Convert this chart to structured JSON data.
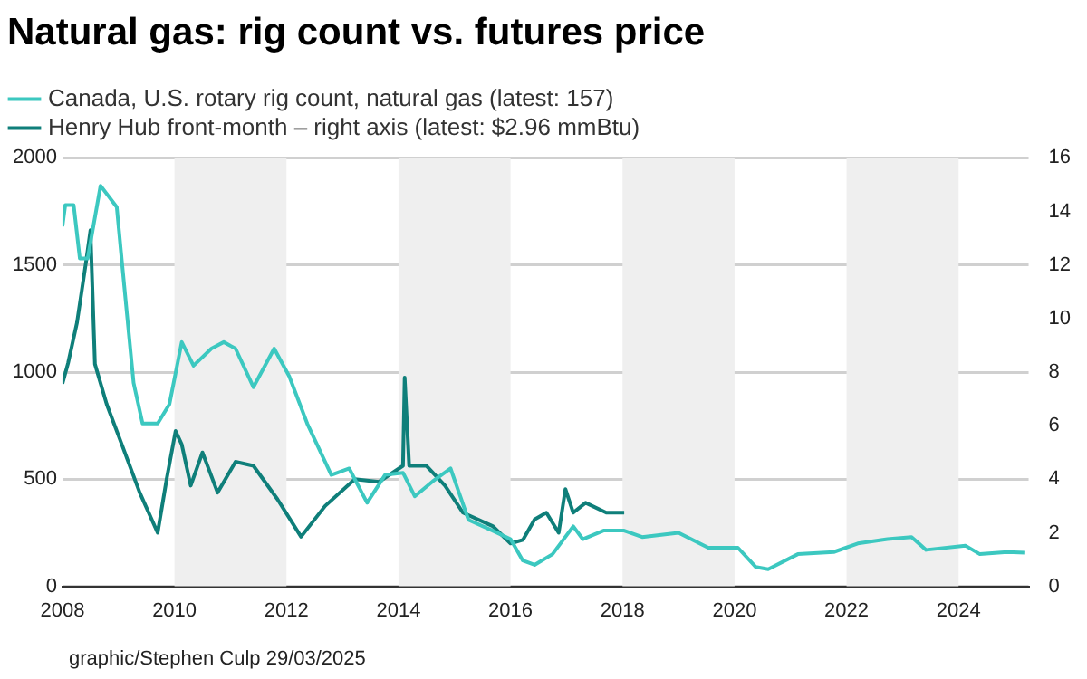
{
  "chart_data": {
    "type": "line",
    "title": "Natural gas: rig count vs. futures price",
    "xlim": [
      2008,
      2025.25
    ],
    "xticks": [
      2008,
      2010,
      2012,
      2014,
      2016,
      2018,
      2020,
      2022,
      2024
    ],
    "ylim": [
      0,
      2000
    ],
    "yticks": [
      0,
      500,
      1000,
      1500,
      2000
    ],
    "y2lim": [
      0,
      16
    ],
    "y2ticks": [
      0,
      2,
      4,
      6,
      8,
      10,
      12,
      14,
      16
    ],
    "grid": "y",
    "legend": "top left",
    "marker": "none",
    "line_style": "solid",
    "bands": [
      {
        "axis": "x",
        "from": 2010,
        "to": 2012,
        "color": "#efefef"
      },
      {
        "axis": "x",
        "from": 2014,
        "to": 2016,
        "color": "#efefef"
      },
      {
        "axis": "x",
        "from": 2018,
        "to": 2020,
        "color": "#efefef"
      },
      {
        "axis": "x",
        "from": 2022,
        "to": 2024,
        "color": "#efefef"
      }
    ],
    "series": [
      {
        "name": "Canada, U.S. rotary rig count, natural gas (latest: 157)",
        "color": "#3cc8c0",
        "x": [
          2008.0,
          2008.05,
          2008.2,
          2008.31,
          2008.45,
          2008.68,
          2008.97,
          2009.06,
          2009.27,
          2009.43,
          2009.7,
          2009.91,
          2010.13,
          2010.34,
          2010.66,
          2010.88,
          2011.09,
          2011.41,
          2011.78,
          2012.05,
          2012.37,
          2012.8,
          2013.12,
          2013.44,
          2013.76,
          2014.08,
          2014.29,
          2014.61,
          2014.93,
          2015.25,
          2015.68,
          2016.0,
          2016.22,
          2016.43,
          2016.75,
          2017.12,
          2017.29,
          2017.66,
          2018.03,
          2018.35,
          2019.0,
          2019.53,
          2020.06,
          2020.38,
          2020.6,
          2021.13,
          2021.77,
          2022.2,
          2022.73,
          2023.16,
          2023.42,
          2024.12,
          2024.38,
          2024.87,
          2025.19
        ],
        "values": [
          1680,
          1780,
          1780,
          1530,
          1530,
          1870,
          1770,
          1520,
          950,
          760,
          760,
          850,
          1140,
          1030,
          1110,
          1140,
          1110,
          930,
          1110,
          980,
          760,
          520,
          550,
          390,
          520,
          530,
          420,
          490,
          550,
          310,
          260,
          220,
          120,
          100,
          150,
          280,
          220,
          260,
          260,
          230,
          250,
          180,
          180,
          90,
          80,
          150,
          160,
          200,
          220,
          230,
          170,
          190,
          150,
          160,
          157
        ]
      },
      {
        "name": "Henry Hub front-month – right axis (latest: $2.96 mmBtu)",
        "color": "#0f7f7a",
        "axis": "y2",
        "x": [
          2008.0,
          2008.1,
          2008.26,
          2008.42,
          2008.5,
          2008.58,
          2008.79,
          2009.06,
          2009.38,
          2009.7,
          2009.86,
          2010.02,
          2010.13,
          2010.29,
          2010.5,
          2010.77,
          2011.09,
          2011.41,
          2011.84,
          2012.26,
          2012.69,
          2013.22,
          2013.65,
          2014.08,
          2014.11,
          2014.19,
          2014.5,
          2014.83,
          2015.15,
          2015.68,
          2016.0,
          2016.22,
          2016.43,
          2016.64,
          2016.86,
          2016.98,
          2017.12,
          2017.34,
          2017.71,
          2018.03
        ],
        "values": [
          7.57,
          8.33,
          9.85,
          12.1,
          13.3,
          8.3,
          6.8,
          5.3,
          3.5,
          2.0,
          4.0,
          5.8,
          5.3,
          3.76,
          5.0,
          3.5,
          4.65,
          4.5,
          3.25,
          1.85,
          3.0,
          4.0,
          3.9,
          4.5,
          7.8,
          4.5,
          4.5,
          3.76,
          2.75,
          2.25,
          1.6,
          1.73,
          2.5,
          2.75,
          2.0,
          3.63,
          2.75,
          3.12,
          2.75,
          2.75
        ]
      }
    ],
    "annotations": [
      "graphic/Stephen Culp 29/03/2025"
    ]
  }
}
